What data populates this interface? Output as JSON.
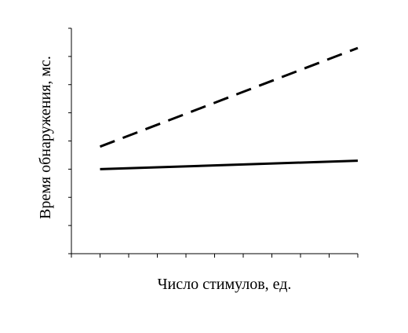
{
  "chart_data": {
    "type": "line",
    "xlabel": "Число стимулов, ед.",
    "ylabel": "Время обнаружения, мс.",
    "x_tick_count": 10,
    "y_tick_count": 8,
    "tick_labels_shown": false,
    "grid": false,
    "legend": "none",
    "x": [
      1,
      10
    ],
    "ylim": [
      0,
      8
    ],
    "xlim": [
      0,
      10
    ],
    "series": [
      {
        "style": "dashed",
        "color": "#000000",
        "x": [
          1,
          10
        ],
        "y": [
          3.8,
          7.3
        ]
      },
      {
        "style": "solid",
        "color": "#000000",
        "x": [
          1,
          10
        ],
        "y": [
          3.0,
          3.3
        ]
      }
    ]
  }
}
